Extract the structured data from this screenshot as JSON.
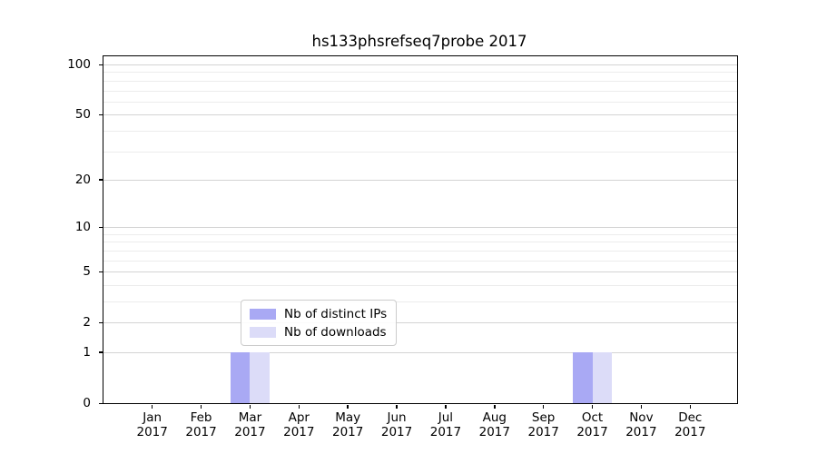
{
  "figure": {
    "title": "hs133phsrefseq7probe 2017",
    "background_color": "#ffffff"
  },
  "chart_data": {
    "type": "bar",
    "title": "hs133phsrefseq7probe 2017",
    "categories": [
      "Jan",
      "Feb",
      "Mar",
      "Apr",
      "May",
      "Jun",
      "Jul",
      "Aug",
      "Sep",
      "Oct",
      "Nov",
      "Dec"
    ],
    "x_tick_year": "2017",
    "series": [
      {
        "name": "Nb of distinct IPs",
        "color": "#a9a9f4",
        "values": [
          0,
          0,
          1,
          0,
          0,
          0,
          0,
          0,
          0,
          1,
          0,
          0
        ]
      },
      {
        "name": "Nb of downloads",
        "color": "#dcdcf8",
        "values": [
          0,
          0,
          1,
          0,
          0,
          0,
          0,
          0,
          0,
          1,
          0,
          0
        ]
      }
    ],
    "xlabel": "",
    "ylabel": "",
    "yscale": "log1p",
    "ylim": [
      0,
      112
    ],
    "yticks": [
      0,
      1,
      2,
      5,
      10,
      20,
      50,
      100
    ],
    "minor_gridlines": [
      3,
      4,
      6,
      7,
      8,
      9,
      30,
      40,
      60,
      70,
      80,
      90
    ],
    "grid": true,
    "legend_position": "lower center",
    "colors": {
      "major_grid": "#d4d4d4",
      "minor_grid": "#ececec",
      "axis": "#000000",
      "legend_border": "#cccccc"
    }
  }
}
